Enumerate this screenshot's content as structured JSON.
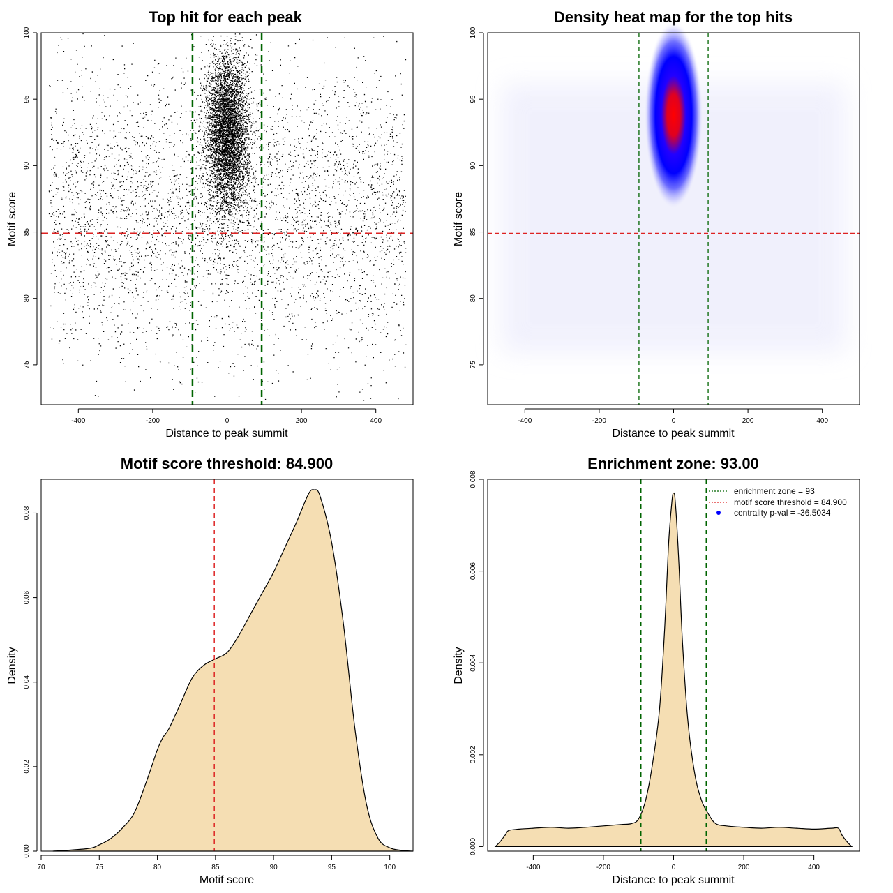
{
  "chart_data": [
    {
      "type": "scatter",
      "title": "Top hit for each peak",
      "xlabel": "Distance to peak summit",
      "ylabel": "Motif score",
      "xlim": [
        -500,
        500
      ],
      "ylim": [
        72,
        100
      ],
      "xticks": [
        -400,
        -200,
        0,
        200,
        400
      ],
      "xtick_labels": [
        "-400",
        "-200",
        "0",
        "200",
        "400"
      ],
      "yticks": [
        75,
        80,
        85,
        90,
        95,
        100
      ],
      "ytick_labels": [
        "75",
        "80",
        "85",
        "90",
        "95",
        "100"
      ],
      "threshold_y": 84.9,
      "zone_x": [
        -93,
        93
      ],
      "hline_color": "#dd2222",
      "vline_color": "#006400",
      "point_color": "#000000",
      "point_sets": [
        {
          "name": "background",
          "x_range": [
            -480,
            480
          ],
          "y_mean": 86.5,
          "y_sd": 5.5,
          "count": 4200
        },
        {
          "name": "central cluster",
          "x_mean": 0,
          "x_sd": 28,
          "y_mean": 92.5,
          "y_sd": 3.0,
          "count": 5200
        }
      ]
    },
    {
      "type": "heatmap",
      "title": "Density heat map for the top hits",
      "xlabel": "Distance to peak summit",
      "ylabel": "Motif score",
      "xlim": [
        -500,
        500
      ],
      "ylim": [
        72,
        100
      ],
      "xticks": [
        -400,
        -200,
        0,
        200,
        400
      ],
      "xtick_labels": [
        "-400",
        "-200",
        "0",
        "200",
        "400"
      ],
      "yticks": [
        75,
        80,
        85,
        90,
        95,
        100
      ],
      "ytick_labels": [
        "75",
        "80",
        "85",
        "90",
        "95",
        "100"
      ],
      "threshold_y": 84.9,
      "zone_x": [
        -93,
        93
      ],
      "hot_spot": {
        "x": 0,
        "y": 93.8
      },
      "colors": [
        "#ffffff",
        "#0000ff",
        "#ff0000"
      ]
    },
    {
      "type": "area",
      "title": "Motif score threshold: 84.900",
      "xlabel": "Motif score",
      "ylabel": "Density",
      "xlim": [
        70,
        102
      ],
      "ylim": [
        0,
        0.088
      ],
      "xticks": [
        70,
        75,
        80,
        85,
        90,
        95,
        100
      ],
      "xtick_labels": [
        "70",
        "75",
        "80",
        "85",
        "90",
        "95",
        "100"
      ],
      "yticks": [
        0,
        0.02,
        0.04,
        0.06,
        0.08
      ],
      "ytick_labels": [
        "0.00",
        "0.02",
        "0.04",
        "0.06",
        "0.08"
      ],
      "threshold_x": 84.9,
      "fill_color": "#f5deb3",
      "x": [
        71,
        74,
        75,
        76,
        77,
        78,
        79,
        80,
        80.5,
        81,
        82,
        83,
        84,
        85,
        86,
        87,
        88,
        89,
        90,
        91,
        92,
        93,
        93.5,
        94,
        95,
        96,
        97,
        98,
        99,
        100,
        101,
        102
      ],
      "y": [
        0,
        0.0006,
        0.0015,
        0.003,
        0.0055,
        0.009,
        0.016,
        0.024,
        0.027,
        0.029,
        0.035,
        0.041,
        0.044,
        0.0455,
        0.047,
        0.051,
        0.056,
        0.061,
        0.066,
        0.072,
        0.078,
        0.0845,
        0.0855,
        0.084,
        0.073,
        0.054,
        0.029,
        0.011,
        0.003,
        0.0008,
        0.0002,
        0
      ]
    },
    {
      "type": "area",
      "title": "Enrichment zone: 93.00",
      "xlabel": "Distance to peak summit",
      "ylabel": "Density",
      "xlim": [
        -530,
        530
      ],
      "ylim": [
        -0.0001,
        0.008
      ],
      "xticks": [
        -400,
        -200,
        0,
        200,
        400
      ],
      "xtick_labels": [
        "-400",
        "-200",
        "0",
        "200",
        "400"
      ],
      "yticks": [
        0,
        0.002,
        0.004,
        0.006,
        0.008
      ],
      "ytick_labels": [
        "0.000",
        "0.002",
        "0.004",
        "0.006",
        "0.008"
      ],
      "zone_x": [
        -93,
        93
      ],
      "fill_color": "#f5deb3",
      "x": [
        -508,
        -495,
        -480,
        -470,
        -440,
        -400,
        -350,
        -300,
        -250,
        -200,
        -150,
        -120,
        -100,
        -80,
        -60,
        -40,
        -25,
        -15,
        -5,
        0,
        5,
        15,
        25,
        40,
        60,
        80,
        100,
        120,
        150,
        200,
        250,
        300,
        350,
        400,
        450,
        470,
        480,
        495,
        508
      ],
      "y": [
        0,
        0.0001,
        0.00025,
        0.00035,
        0.00038,
        0.0004,
        0.00042,
        0.0004,
        0.00042,
        0.00045,
        0.00048,
        0.0005,
        0.0006,
        0.001,
        0.0018,
        0.003,
        0.0048,
        0.0065,
        0.0075,
        0.0077,
        0.0075,
        0.0062,
        0.0045,
        0.0028,
        0.0016,
        0.001,
        0.0007,
        0.0005,
        0.00045,
        0.00042,
        0.0004,
        0.00042,
        0.0004,
        0.00038,
        0.0004,
        0.0004,
        0.00025,
        0.0001,
        0
      ],
      "legend": [
        {
          "label": "enrichment zone = 93",
          "color": "#006400",
          "style": "dotted-line"
        },
        {
          "label": "motif score threshold = 84.900",
          "color": "#dd2222",
          "style": "dotted-line"
        },
        {
          "label": "centrality p-val = -36.5034",
          "color": "#0000ff",
          "style": "point"
        }
      ],
      "legend_position": "top-right"
    }
  ]
}
